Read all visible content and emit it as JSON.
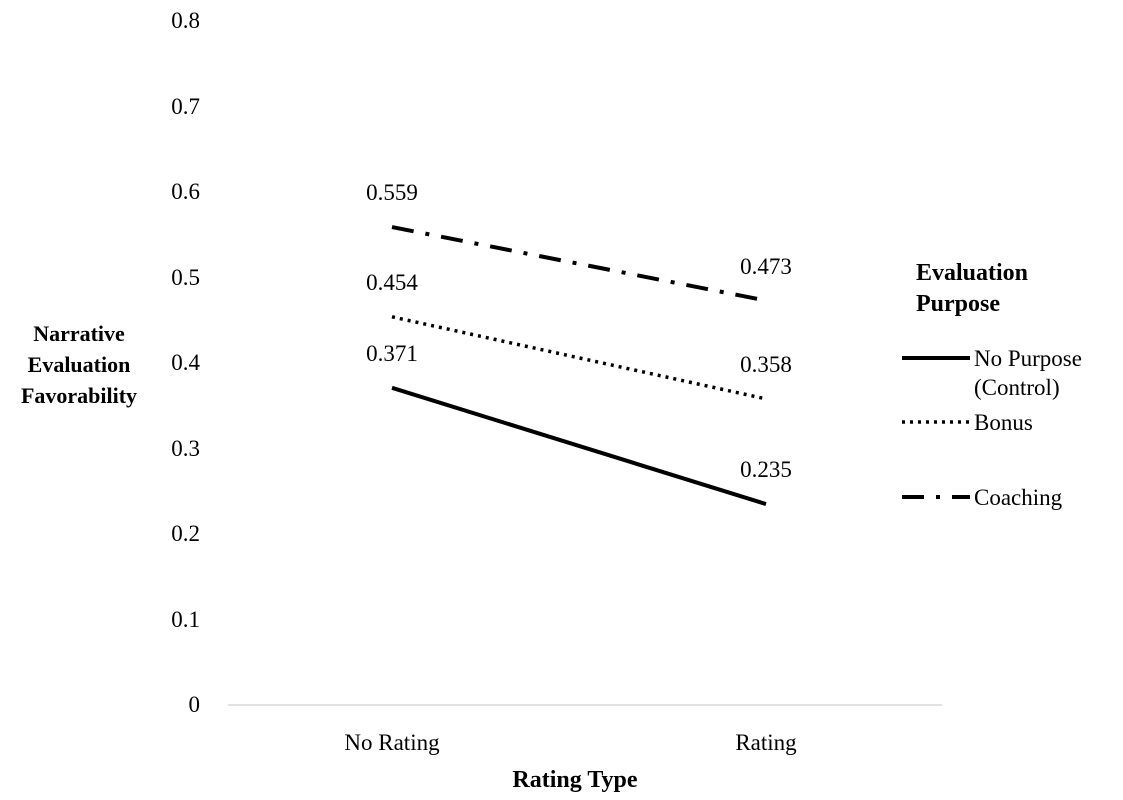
{
  "chart_data": {
    "type": "line",
    "xlabel": "Rating Type",
    "ylabel": [
      "Narrative",
      "Evaluation",
      "Favorability"
    ],
    "categories": [
      "No Rating",
      "Rating"
    ],
    "ylim": [
      0,
      0.8
    ],
    "yticks": [
      "0",
      "0.1",
      "0.2",
      "0.3",
      "0.4",
      "0.5",
      "0.6",
      "0.7",
      "0.8"
    ],
    "grid": false,
    "legend_title": [
      "Evaluation",
      "Purpose"
    ],
    "legend_position": "right",
    "series": [
      {
        "name": [
          "No Purpose",
          "(Control)"
        ],
        "values": [
          0.371,
          0.235
        ],
        "value_labels": [
          "0.371",
          "0.235"
        ],
        "style": "solid",
        "color": "#000000"
      },
      {
        "name": [
          "Bonus"
        ],
        "values": [
          0.454,
          0.358
        ],
        "value_labels": [
          "0.454",
          "0.358"
        ],
        "style": "dotted",
        "color": "#000000"
      },
      {
        "name": [
          "Coaching"
        ],
        "values": [
          0.559,
          0.473
        ],
        "value_labels": [
          "0.559",
          "0.473"
        ],
        "style": "dash-dot",
        "color": "#000000"
      }
    ]
  }
}
